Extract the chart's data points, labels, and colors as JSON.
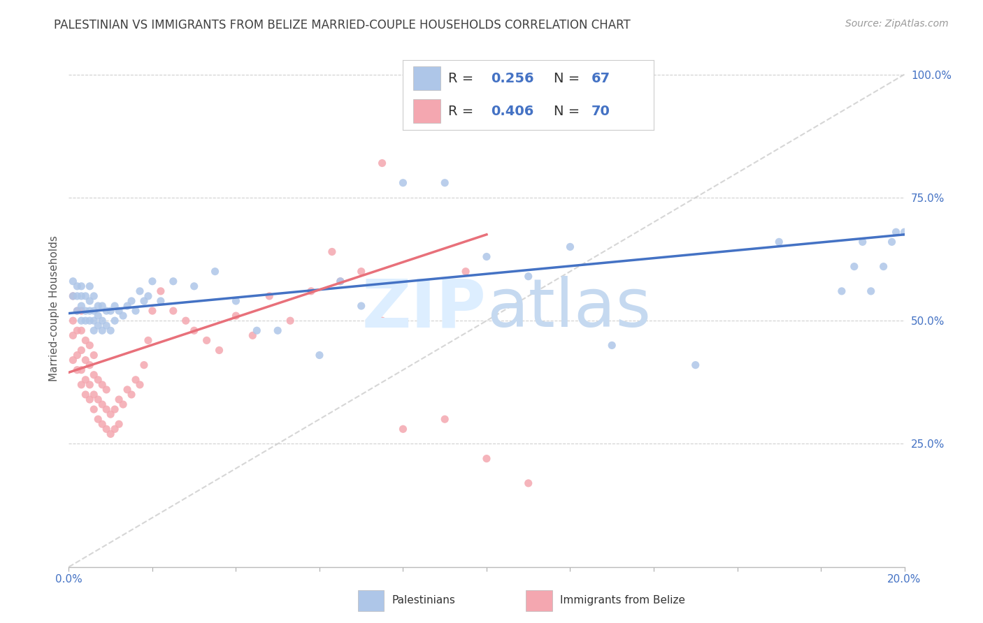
{
  "title": "PALESTINIAN VS IMMIGRANTS FROM BELIZE MARRIED-COUPLE HOUSEHOLDS CORRELATION CHART",
  "source": "Source: ZipAtlas.com",
  "ylabel": "Married-couple Households",
  "xmin": 0.0,
  "xmax": 0.2,
  "ymin": 0.0,
  "ymax": 1.05,
  "yticks": [
    0.25,
    0.5,
    0.75,
    1.0
  ],
  "ytick_labels": [
    "25.0%",
    "50.0%",
    "75.0%",
    "100.0%"
  ],
  "xticks": [
    0.0,
    0.02,
    0.04,
    0.06,
    0.08,
    0.1,
    0.12,
    0.14,
    0.16,
    0.18,
    0.2
  ],
  "xtick_labels": [
    "0.0%",
    "",
    "",
    "",
    "",
    "",
    "",
    "",
    "",
    "",
    "20.0%"
  ],
  "palestinian_R": 0.256,
  "palestinian_N": 67,
  "belize_R": 0.406,
  "belize_N": 70,
  "palestinian_color": "#aec6e8",
  "belize_color": "#f4a7b0",
  "trendline_palestinian_color": "#4472c4",
  "trendline_belize_color": "#e8707a",
  "trendline_pal_x0": 0.0,
  "trendline_pal_y0": 0.515,
  "trendline_pal_x1": 0.2,
  "trendline_pal_y1": 0.675,
  "trendline_bel_x0": 0.0,
  "trendline_bel_y0": 0.395,
  "trendline_bel_x1": 0.1,
  "trendline_bel_y1": 0.675,
  "diagonal_color": "#cccccc",
  "background_color": "#ffffff",
  "grid_color": "#d0d0d0",
  "title_color": "#404040",
  "axis_label_color": "#4472c4",
  "pal_x": [
    0.001,
    0.001,
    0.002,
    0.002,
    0.002,
    0.003,
    0.003,
    0.003,
    0.003,
    0.004,
    0.004,
    0.004,
    0.005,
    0.005,
    0.005,
    0.005,
    0.006,
    0.006,
    0.006,
    0.006,
    0.007,
    0.007,
    0.007,
    0.008,
    0.008,
    0.008,
    0.009,
    0.009,
    0.01,
    0.01,
    0.011,
    0.011,
    0.012,
    0.013,
    0.014,
    0.015,
    0.016,
    0.017,
    0.018,
    0.019,
    0.02,
    0.022,
    0.025,
    0.03,
    0.035,
    0.04,
    0.045,
    0.05,
    0.06,
    0.065,
    0.07,
    0.08,
    0.09,
    0.1,
    0.11,
    0.12,
    0.13,
    0.15,
    0.17,
    0.185,
    0.188,
    0.19,
    0.192,
    0.195,
    0.197,
    0.198,
    0.2
  ],
  "pal_y": [
    0.55,
    0.58,
    0.52,
    0.55,
    0.57,
    0.5,
    0.53,
    0.55,
    0.57,
    0.5,
    0.52,
    0.55,
    0.5,
    0.52,
    0.54,
    0.57,
    0.48,
    0.5,
    0.52,
    0.55,
    0.49,
    0.51,
    0.53,
    0.48,
    0.5,
    0.53,
    0.49,
    0.52,
    0.48,
    0.52,
    0.5,
    0.53,
    0.52,
    0.51,
    0.53,
    0.54,
    0.52,
    0.56,
    0.54,
    0.55,
    0.58,
    0.54,
    0.58,
    0.57,
    0.6,
    0.54,
    0.48,
    0.48,
    0.43,
    0.58,
    0.53,
    0.78,
    0.78,
    0.63,
    0.59,
    0.65,
    0.45,
    0.41,
    0.66,
    0.56,
    0.61,
    0.66,
    0.56,
    0.61,
    0.66,
    0.68,
    0.68
  ],
  "bel_x": [
    0.001,
    0.001,
    0.001,
    0.001,
    0.002,
    0.002,
    0.002,
    0.002,
    0.003,
    0.003,
    0.003,
    0.003,
    0.003,
    0.004,
    0.004,
    0.004,
    0.004,
    0.005,
    0.005,
    0.005,
    0.005,
    0.006,
    0.006,
    0.006,
    0.006,
    0.007,
    0.007,
    0.007,
    0.008,
    0.008,
    0.008,
    0.009,
    0.009,
    0.009,
    0.01,
    0.01,
    0.011,
    0.011,
    0.012,
    0.012,
    0.013,
    0.014,
    0.015,
    0.016,
    0.017,
    0.018,
    0.019,
    0.02,
    0.022,
    0.025,
    0.028,
    0.03,
    0.033,
    0.036,
    0.04,
    0.044,
    0.048,
    0.053,
    0.058,
    0.063,
    0.07,
    0.075,
    0.08,
    0.09,
    0.1,
    0.11,
    0.095,
    0.085,
    0.075,
    0.065
  ],
  "bel_y": [
    0.42,
    0.47,
    0.5,
    0.55,
    0.4,
    0.43,
    0.48,
    0.52,
    0.37,
    0.4,
    0.44,
    0.48,
    0.52,
    0.35,
    0.38,
    0.42,
    0.46,
    0.34,
    0.37,
    0.41,
    0.45,
    0.32,
    0.35,
    0.39,
    0.43,
    0.3,
    0.34,
    0.38,
    0.29,
    0.33,
    0.37,
    0.28,
    0.32,
    0.36,
    0.27,
    0.31,
    0.28,
    0.32,
    0.29,
    0.34,
    0.33,
    0.36,
    0.35,
    0.38,
    0.37,
    0.41,
    0.46,
    0.52,
    0.56,
    0.52,
    0.5,
    0.48,
    0.46,
    0.44,
    0.51,
    0.47,
    0.55,
    0.5,
    0.56,
    0.64,
    0.6,
    0.82,
    0.28,
    0.3,
    0.22,
    0.17,
    0.6,
    0.55,
    0.5,
    0.58
  ]
}
